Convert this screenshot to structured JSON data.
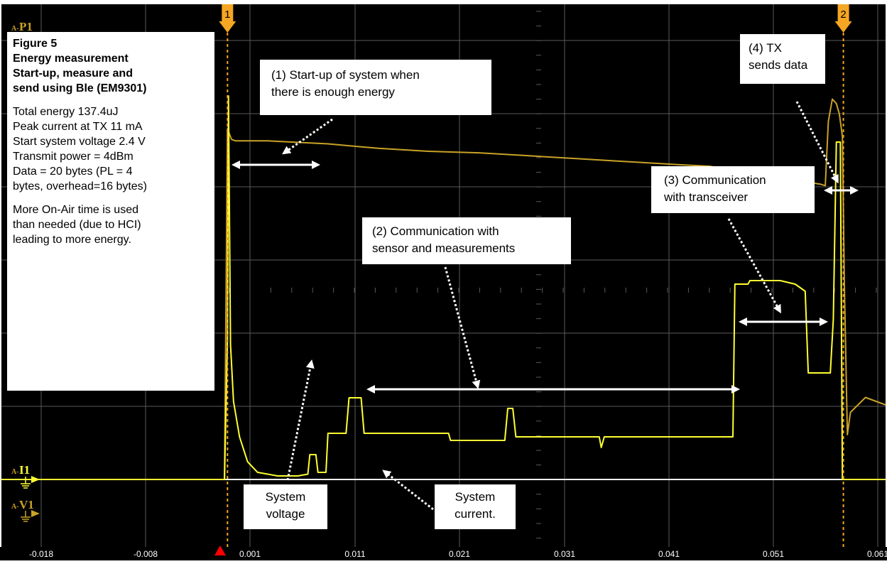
{
  "chart_data": {
    "type": "line",
    "x_ticks": [
      "-0.018",
      "-0.008",
      "0.001",
      "0.011",
      "0.021",
      "0.031",
      "0.041",
      "0.051",
      "0.061"
    ],
    "xlim": [
      -0.0225,
      0.0655
    ],
    "grid": true,
    "cursors": [
      {
        "label": "1",
        "x": 0.0
      },
      {
        "label": "2",
        "x": 0.0613
      }
    ],
    "channel_labels": {
      "p1_prefix": "A-",
      "p1": "P1",
      "i1_prefix": "A-",
      "i1": "I1",
      "v1_prefix": "A-",
      "v1": "V1"
    },
    "series": [
      {
        "role": "system-voltage",
        "x": [
          -0.0225,
          -0.0003,
          0.0,
          0.0004,
          0.0008,
          0.0015,
          0.004,
          0.01,
          0.015,
          0.02,
          0.025,
          0.03,
          0.035,
          0.04,
          0.045,
          0.048,
          0.051,
          0.054,
          0.057,
          0.059,
          0.0595,
          0.0598,
          0.0602,
          0.0606,
          0.0609,
          0.0612,
          0.0614,
          0.0617,
          0.062,
          0.0635,
          0.0655
        ],
        "y": [
          0.0,
          0.0,
          2.35,
          2.28,
          2.27,
          2.27,
          2.27,
          2.25,
          2.22,
          2.2,
          2.19,
          2.17,
          2.15,
          2.13,
          2.11,
          2.1,
          2.06,
          2.02,
          2.0,
          1.98,
          1.97,
          2.4,
          2.55,
          2.52,
          2.45,
          2.3,
          1.3,
          0.3,
          0.45,
          0.55,
          0.5
        ]
      },
      {
        "role": "system-current",
        "x": [
          -0.0225,
          -0.0003,
          0.0,
          0.0001,
          0.0003,
          0.0006,
          0.0012,
          0.002,
          0.003,
          0.005,
          0.007,
          0.008,
          0.0082,
          0.0088,
          0.009,
          0.0098,
          0.01,
          0.0118,
          0.0121,
          0.0133,
          0.0136,
          0.017,
          0.022,
          0.0222,
          0.0276,
          0.0279,
          0.0284,
          0.0287,
          0.029,
          0.037,
          0.0372,
          0.0375,
          0.049,
          0.0503,
          0.0505,
          0.0518,
          0.052,
          0.055,
          0.0565,
          0.0575,
          0.0578,
          0.06,
          0.0603,
          0.0606,
          0.061,
          0.0612,
          0.0655
        ],
        "y": [
          0.0,
          0.0,
          4.0,
          10.8,
          3.8,
          2.2,
          1.2,
          0.5,
          0.2,
          0.1,
          0.1,
          0.15,
          0.7,
          0.7,
          0.2,
          0.2,
          1.3,
          1.3,
          2.3,
          2.3,
          1.3,
          1.3,
          1.3,
          1.1,
          1.1,
          2.0,
          2.0,
          1.2,
          1.2,
          1.2,
          0.9,
          1.2,
          1.2,
          1.2,
          5.5,
          5.5,
          5.6,
          5.6,
          5.5,
          5.3,
          3.0,
          3.0,
          4.5,
          9.5,
          9.5,
          0.0,
          0.0
        ]
      }
    ]
  },
  "info_box": {
    "line1": "Figure 5",
    "line2": "Energy measurement",
    "line3_words": [
      "Start-up,",
      "measure",
      "and"
    ],
    "line4": "send using Ble (EM9301)",
    "body1": "Total energy 137.4uJ",
    "body2": "Peak current at TX  11 mA",
    "body3": "Start system voltage 2.4 V",
    "body4": "Transmit power = 4dBm",
    "body5_words": [
      "Data",
      "=",
      "20",
      "bytes",
      "(PL",
      "=",
      "4"
    ],
    "body6": "bytes, overhead=16 bytes)",
    "body7_words": [
      "More",
      "On-Air",
      "time",
      "is",
      "used"
    ],
    "body8_words": [
      "than",
      "needed",
      "(due",
      "to",
      "HCI)"
    ],
    "body9": "leading to more energy."
  },
  "annotations": {
    "a1_line1": "(1) Start-up of system when",
    "a1_line2": "there is enough energy",
    "a2_line1": "(2) Communication with",
    "a2_line2": "sensor and measurements",
    "a3_line1": "(3) Communication",
    "a3_line2": "with transceiver",
    "a4_line1": "(4) TX",
    "a4_line2": "sends data",
    "v_line1": "System",
    "v_line2": "voltage",
    "c_line1": "System",
    "c_line2": "current."
  },
  "colors": {
    "background": "#000000",
    "grid": "#5a5a5a",
    "voltage": "#c9a227",
    "current": "#ffff33",
    "baseline": "#f2f2f2",
    "cursor": "#f5a623",
    "trigger": "#ff0000",
    "tick_text": "#ffffff",
    "arrow": "#ffffff"
  }
}
